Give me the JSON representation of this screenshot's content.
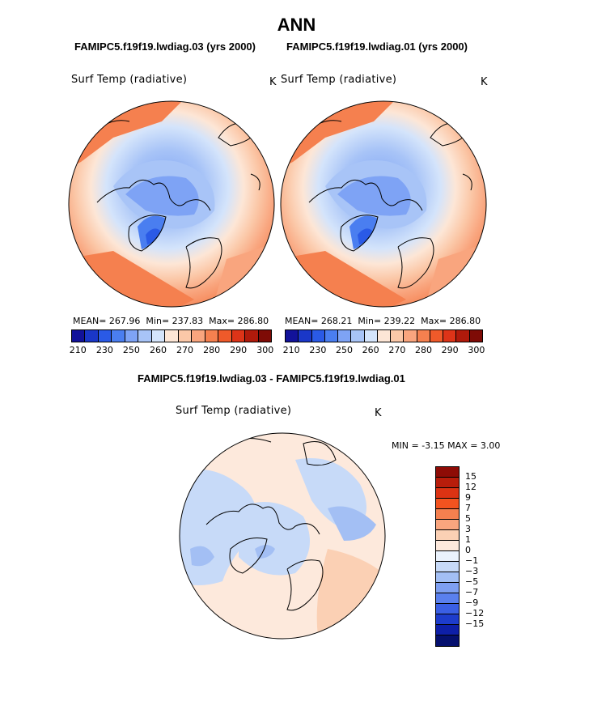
{
  "title": "ANN",
  "panels": [
    {
      "case_title": "FAMIPC5.f19f19.lwdiag.03 (yrs 2000)",
      "variable": "Surf Temp (radiative)",
      "units": "K",
      "stats": {
        "mean_label": "MEAN=",
        "mean": "267.96",
        "min_label": "Min=",
        "min": "237.83",
        "max_label": "Max=",
        "max": "286.80"
      }
    },
    {
      "case_title": "FAMIPC5.f19f19.lwdiag.01 (yrs 2000)",
      "variable": "Surf Temp (radiative)",
      "units": "K",
      "stats": {
        "mean_label": "MEAN=",
        "mean": "268.21",
        "min_label": "Min=",
        "min": "239.22",
        "max_label": "Max=",
        "max": "286.80"
      }
    }
  ],
  "colorbar": {
    "colors": [
      "#12129a",
      "#1a37c8",
      "#2a5ae6",
      "#4a7ef0",
      "#7ea3f5",
      "#a8c4f7",
      "#d4e4fb",
      "#fde6d6",
      "#fbc8a8",
      "#f9a57e",
      "#f5804f",
      "#ef5a2a",
      "#dd3418",
      "#b01a0b",
      "#7e0b06"
    ],
    "ticks": [
      "210",
      "230",
      "250",
      "260",
      "270",
      "280",
      "290",
      "300"
    ]
  },
  "diff": {
    "title": "FAMIPC5.f19f19.lwdiag.03 - FAMIPC5.f19f19.lwdiag.01",
    "variable": "Surf Temp (radiative)",
    "units": "K",
    "min_label": "MIN =",
    "min": "-3.15",
    "max_label": "MAX =",
    "max": "3.00",
    "colors": [
      "#8e0c06",
      "#b81d0b",
      "#dc3313",
      "#f3531f",
      "#f5804f",
      "#f9a57e",
      "#fbd0b4",
      "#fde9dc",
      "#eaf2fc",
      "#c7daf8",
      "#a3bff4",
      "#7e9ff1",
      "#5a80ee",
      "#3a5fe4",
      "#1d3ccc",
      "#0e1fa8",
      "#05106e"
    ],
    "ticks": [
      "15",
      "12",
      "9",
      "7",
      "5",
      "3",
      "1",
      "0",
      "−1",
      "−3",
      "−5",
      "−7",
      "−9",
      "−12",
      "−15"
    ]
  }
}
